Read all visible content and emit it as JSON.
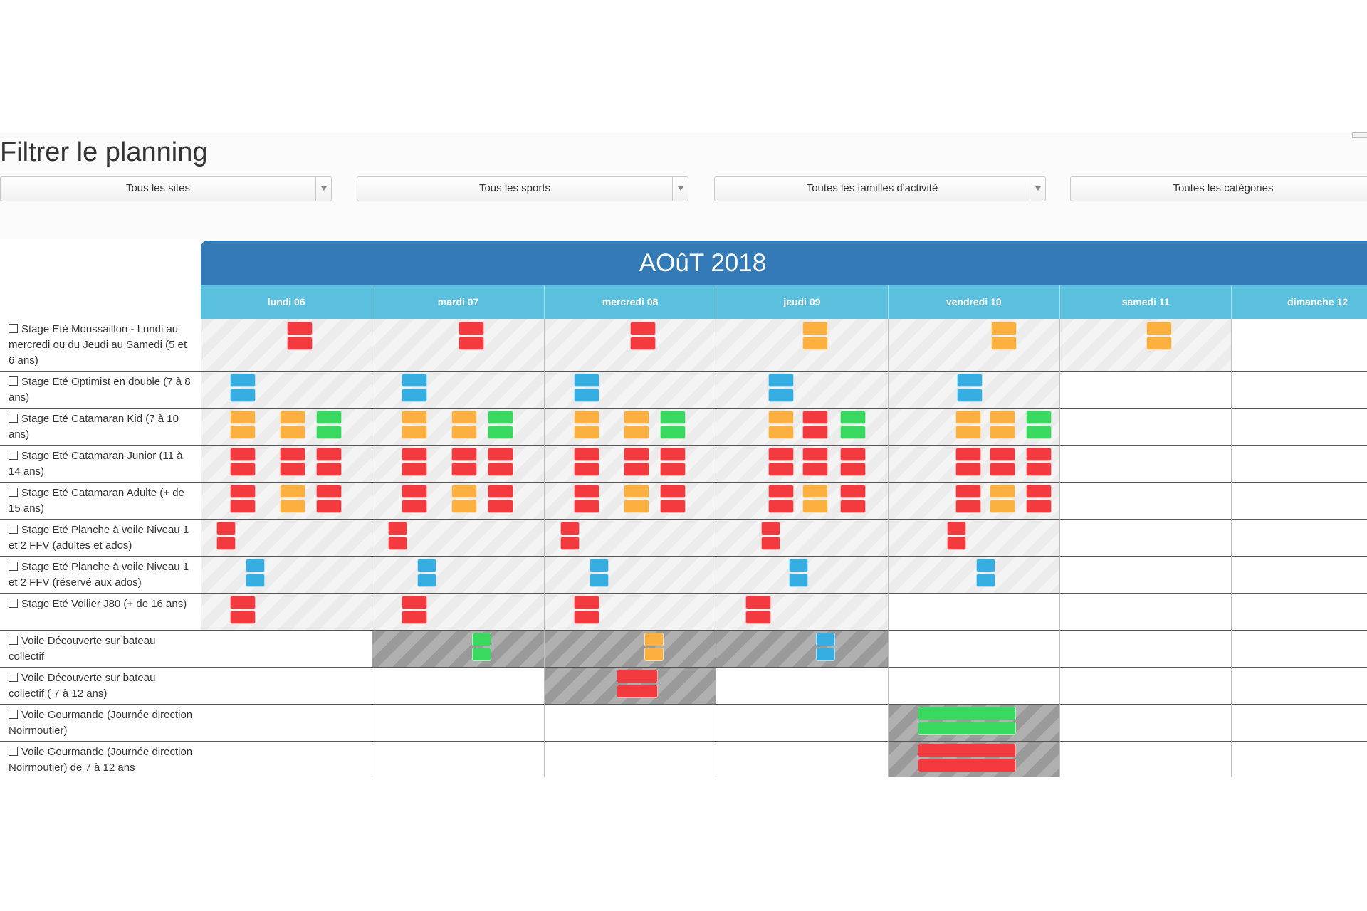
{
  "page_title": "Filtrer le planning",
  "filters": [
    {
      "label": "Tous les sites",
      "has_arrow": true
    },
    {
      "label": "Tous les sports",
      "has_arrow": true
    },
    {
      "label": "Toutes les familles d'activité",
      "has_arrow": true
    },
    {
      "label": "Toutes les catégories",
      "has_arrow": false
    }
  ],
  "calendar": {
    "month_title": "AOûT 2018",
    "days": [
      "lundi 06",
      "mardi 07",
      "mercredi 08",
      "jeudi 09",
      "vendredi 10",
      "samedi 11",
      "dimanche 12"
    ]
  },
  "colors": {
    "red": "#f33b3f",
    "orange": "#fbb040",
    "green": "#39d85f",
    "blue": "#36aee2",
    "header_blue": "#337ab7",
    "day_header": "#5bc0de"
  },
  "activities": [
    {
      "label": "Stage Eté Moussaillon - Lundi au mercredi ou du Jeudi au Samedi (5 et 6 ans)",
      "days": [
        {
          "shade": "light",
          "slots": [
            {
              "color": "red",
              "start": 0.5
            }
          ]
        },
        {
          "shade": "light",
          "slots": [
            {
              "color": "red",
              "start": 0.5
            }
          ]
        },
        {
          "shade": "light",
          "slots": [
            {
              "color": "red",
              "start": 0.5
            }
          ]
        },
        {
          "shade": "light",
          "slots": [
            {
              "color": "orange",
              "start": 0.5
            }
          ]
        },
        {
          "shade": "light",
          "slots": [
            {
              "color": "orange",
              "start": 0.6
            }
          ]
        },
        {
          "shade": "light",
          "slots": [
            {
              "color": "orange",
              "start": 0.5
            }
          ]
        },
        {
          "shade": "none",
          "slots": []
        }
      ]
    },
    {
      "label": "Stage Eté Optimist en double (7 à 8 ans)",
      "days": [
        {
          "shade": "light",
          "slots": [
            {
              "color": "blue",
              "start": 0.17
            }
          ]
        },
        {
          "shade": "light",
          "slots": [
            {
              "color": "blue",
              "start": 0.17
            }
          ]
        },
        {
          "shade": "light",
          "slots": [
            {
              "color": "blue",
              "start": 0.17
            }
          ]
        },
        {
          "shade": "light",
          "slots": [
            {
              "color": "blue",
              "start": 0.3
            }
          ]
        },
        {
          "shade": "light",
          "slots": [
            {
              "color": "blue",
              "start": 0.4
            }
          ]
        },
        {
          "shade": "none",
          "slots": []
        },
        {
          "shade": "none",
          "slots": []
        }
      ]
    },
    {
      "label": "Stage Eté Catamaran Kid (7 à 10 ans)",
      "days": [
        {
          "shade": "light",
          "slots": [
            {
              "color": "orange",
              "start": 0.17
            },
            {
              "color": "orange",
              "start": 0.46
            },
            {
              "color": "green",
              "start": 0.67
            }
          ]
        },
        {
          "shade": "light",
          "slots": [
            {
              "color": "orange",
              "start": 0.17
            },
            {
              "color": "orange",
              "start": 0.46
            },
            {
              "color": "green",
              "start": 0.67
            }
          ]
        },
        {
          "shade": "light",
          "slots": [
            {
              "color": "orange",
              "start": 0.17
            },
            {
              "color": "orange",
              "start": 0.46
            },
            {
              "color": "green",
              "start": 0.67
            }
          ]
        },
        {
          "shade": "light",
          "slots": [
            {
              "color": "orange",
              "start": 0.3
            },
            {
              "color": "red",
              "start": 0.5
            },
            {
              "color": "green",
              "start": 0.72
            }
          ]
        },
        {
          "shade": "light",
          "slots": [
            {
              "color": "orange",
              "start": 0.39
            },
            {
              "color": "orange",
              "start": 0.59
            },
            {
              "color": "green",
              "start": 0.8
            }
          ]
        },
        {
          "shade": "none",
          "slots": []
        },
        {
          "shade": "none",
          "slots": []
        }
      ]
    },
    {
      "label": "Stage Eté Catamaran Junior (11 à 14 ans)",
      "days": [
        {
          "shade": "light",
          "slots": [
            {
              "color": "red",
              "start": 0.17
            },
            {
              "color": "red",
              "start": 0.46
            },
            {
              "color": "red",
              "start": 0.67
            }
          ]
        },
        {
          "shade": "light",
          "slots": [
            {
              "color": "red",
              "start": 0.17
            },
            {
              "color": "red",
              "start": 0.46
            },
            {
              "color": "red",
              "start": 0.67
            }
          ]
        },
        {
          "shade": "light",
          "slots": [
            {
              "color": "red",
              "start": 0.17
            },
            {
              "color": "red",
              "start": 0.46
            },
            {
              "color": "red",
              "start": 0.67
            }
          ]
        },
        {
          "shade": "light",
          "slots": [
            {
              "color": "red",
              "start": 0.3
            },
            {
              "color": "red",
              "start": 0.5
            },
            {
              "color": "red",
              "start": 0.72
            }
          ]
        },
        {
          "shade": "light",
          "slots": [
            {
              "color": "red",
              "start": 0.39
            },
            {
              "color": "red",
              "start": 0.59
            },
            {
              "color": "red",
              "start": 0.8
            }
          ]
        },
        {
          "shade": "none",
          "slots": []
        },
        {
          "shade": "none",
          "slots": []
        }
      ]
    },
    {
      "label": "Stage Eté Catamaran Adulte (+ de 15 ans)",
      "days": [
        {
          "shade": "light",
          "slots": [
            {
              "color": "red",
              "start": 0.17
            },
            {
              "color": "orange",
              "start": 0.46
            },
            {
              "color": "red",
              "start": 0.67
            }
          ]
        },
        {
          "shade": "light",
          "slots": [
            {
              "color": "red",
              "start": 0.17
            },
            {
              "color": "orange",
              "start": 0.46
            },
            {
              "color": "red",
              "start": 0.67
            }
          ]
        },
        {
          "shade": "light",
          "slots": [
            {
              "color": "red",
              "start": 0.17
            },
            {
              "color": "orange",
              "start": 0.46
            },
            {
              "color": "red",
              "start": 0.67
            }
          ]
        },
        {
          "shade": "light",
          "slots": [
            {
              "color": "red",
              "start": 0.3
            },
            {
              "color": "orange",
              "start": 0.5
            },
            {
              "color": "red",
              "start": 0.72
            }
          ]
        },
        {
          "shade": "light",
          "slots": [
            {
              "color": "red",
              "start": 0.39
            },
            {
              "color": "orange",
              "start": 0.59
            },
            {
              "color": "red",
              "start": 0.8
            }
          ]
        },
        {
          "shade": "none",
          "slots": []
        },
        {
          "shade": "none",
          "slots": []
        }
      ]
    },
    {
      "label": "Stage Eté Planche à voile Niveau 1 et 2 FFV (adultes et ados)",
      "days": [
        {
          "shade": "light",
          "slots": [
            {
              "color": "red",
              "start": 0.09,
              "narrow": true
            }
          ]
        },
        {
          "shade": "light",
          "slots": [
            {
              "color": "red",
              "start": 0.09,
              "narrow": true
            }
          ]
        },
        {
          "shade": "light",
          "slots": [
            {
              "color": "red",
              "start": 0.09,
              "narrow": true
            }
          ]
        },
        {
          "shade": "light",
          "slots": [
            {
              "color": "red",
              "start": 0.26,
              "narrow": true
            }
          ]
        },
        {
          "shade": "light",
          "slots": [
            {
              "color": "red",
              "start": 0.34,
              "narrow": true
            }
          ]
        },
        {
          "shade": "none",
          "slots": []
        },
        {
          "shade": "none",
          "slots": []
        }
      ]
    },
    {
      "label": "Stage Eté Planche à voile Niveau 1 et 2 FFV (réservé aux ados)",
      "days": [
        {
          "shade": "light",
          "slots": [
            {
              "color": "blue",
              "start": 0.26,
              "narrow": true
            }
          ]
        },
        {
          "shade": "light",
          "slots": [
            {
              "color": "blue",
              "start": 0.26,
              "narrow": true
            }
          ]
        },
        {
          "shade": "light",
          "slots": [
            {
              "color": "blue",
              "start": 0.26,
              "narrow": true
            }
          ]
        },
        {
          "shade": "light",
          "slots": [
            {
              "color": "blue",
              "start": 0.42,
              "narrow": true
            }
          ]
        },
        {
          "shade": "light",
          "slots": [
            {
              "color": "blue",
              "start": 0.51,
              "narrow": true
            }
          ]
        },
        {
          "shade": "none",
          "slots": []
        },
        {
          "shade": "none",
          "slots": []
        }
      ]
    },
    {
      "label": "Stage Eté Voilier J80 (+ de 16 ans)",
      "days": [
        {
          "shade": "light",
          "slots": [
            {
              "color": "red",
              "start": 0.17
            }
          ]
        },
        {
          "shade": "light",
          "slots": [
            {
              "color": "red",
              "start": 0.17
            }
          ]
        },
        {
          "shade": "light",
          "slots": [
            {
              "color": "red",
              "start": 0.17
            }
          ]
        },
        {
          "shade": "light",
          "slots": [
            {
              "color": "red",
              "start": 0.17
            }
          ]
        },
        {
          "shade": "none",
          "slots": []
        },
        {
          "shade": "none",
          "slots": []
        },
        {
          "shade": "none",
          "slots": []
        }
      ]
    },
    {
      "label": "Voile Découverte sur bateau collectif",
      "days": [
        {
          "shade": "none",
          "slots": []
        },
        {
          "shade": "dark",
          "slots": [
            {
              "color": "green",
              "start": 0.58,
              "narrow": true
            }
          ]
        },
        {
          "shade": "dark",
          "slots": [
            {
              "color": "orange",
              "start": 0.58,
              "narrow": true
            }
          ]
        },
        {
          "shade": "dark",
          "slots": [
            {
              "color": "blue",
              "start": 0.58,
              "narrow": true
            }
          ]
        },
        {
          "shade": "none",
          "slots": []
        },
        {
          "shade": "none",
          "slots": []
        },
        {
          "shade": "none",
          "slots": []
        }
      ]
    },
    {
      "label": "Voile Découverte sur bateau collectif ( 7 à 12 ans)",
      "days": [
        {
          "shade": "none",
          "slots": []
        },
        {
          "shade": "none",
          "slots": []
        },
        {
          "shade": "dark",
          "slots": [
            {
              "color": "red",
              "start": 0.42,
              "wide": true
            }
          ]
        },
        {
          "shade": "none",
          "slots": []
        },
        {
          "shade": "none",
          "slots": []
        },
        {
          "shade": "none",
          "slots": []
        },
        {
          "shade": "none",
          "slots": []
        }
      ]
    },
    {
      "label": "Voile Gourmande (Journée direction Noirmoutier)",
      "days": [
        {
          "shade": "none",
          "slots": []
        },
        {
          "shade": "none",
          "slots": []
        },
        {
          "shade": "none",
          "slots": []
        },
        {
          "shade": "none",
          "slots": []
        },
        {
          "shade": "dark",
          "slots": [
            {
              "color": "green",
              "start": 0.17,
              "full": true
            }
          ]
        },
        {
          "shade": "none",
          "slots": []
        },
        {
          "shade": "none",
          "slots": []
        }
      ]
    },
    {
      "label": "Voile Gourmande (Journée direction Noirmoutier) de 7 à 12 ans",
      "days": [
        {
          "shade": "none",
          "slots": []
        },
        {
          "shade": "none",
          "slots": []
        },
        {
          "shade": "none",
          "slots": []
        },
        {
          "shade": "none",
          "slots": []
        },
        {
          "shade": "dark",
          "slots": [
            {
              "color": "red",
              "start": 0.17,
              "full": true
            }
          ]
        },
        {
          "shade": "none",
          "slots": []
        },
        {
          "shade": "none",
          "slots": []
        }
      ]
    }
  ]
}
